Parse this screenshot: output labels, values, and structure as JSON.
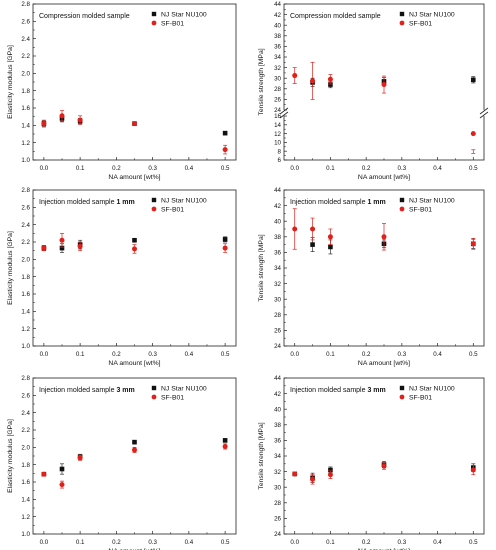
{
  "colors": {
    "nj": "#111111",
    "sf": "#e0201b",
    "axis": "#222222",
    "err_nj": "#333333",
    "err_sf": "#e0201b"
  },
  "chart_data": [
    {
      "type": "scatter",
      "title": "Compression molded sample",
      "title_suffix": "",
      "xlabel": "NA amount [wt%]",
      "ylabel": "Elasticity modulus [GPa]",
      "xlim": [
        -0.03,
        0.53
      ],
      "ylim": [
        1.0,
        2.8
      ],
      "xticks": [
        "0.0",
        "0.1",
        "0.2",
        "0.3",
        "0.4",
        "0.5"
      ],
      "yticks": [
        "1.0",
        "1.2",
        "1.4",
        "1.6",
        "1.8",
        "2.0",
        "2.2",
        "2.4",
        "2.6",
        "2.8"
      ],
      "legend": "top-right",
      "series": [
        {
          "name": "NJ Star NU100",
          "marker": "square",
          "x": [
            0.0,
            0.05,
            0.1,
            0.25,
            0.5
          ],
          "y": [
            1.42,
            1.48,
            1.45,
            1.42,
            1.31
          ],
          "err": [
            0.03,
            0.04,
            0.03,
            0.02,
            0.02
          ]
        },
        {
          "name": "SF-B01",
          "marker": "circle",
          "x": [
            0.0,
            0.05,
            0.1,
            0.25,
            0.5
          ],
          "y": [
            1.42,
            1.51,
            1.46,
            1.42,
            1.12
          ],
          "err": [
            0.04,
            0.06,
            0.05,
            0.02,
            0.05
          ]
        }
      ]
    },
    {
      "type": "scatter",
      "title": "Compression molded sample",
      "title_suffix": "",
      "xlabel": "NA amount [wt%]",
      "ylabel": "Tensile strength [MPa]",
      "xlim": [
        -0.03,
        0.53
      ],
      "broken_axis": true,
      "ylim_lower": [
        6,
        16
      ],
      "ylim_upper": [
        24,
        44
      ],
      "yticks_lower": [
        "6",
        "8",
        "10",
        "12",
        "14",
        "16"
      ],
      "yticks_upper": [
        "24",
        "26",
        "28",
        "30",
        "32",
        "34",
        "36",
        "38",
        "40",
        "42",
        "44"
      ],
      "xticks": [
        "0.0",
        "0.1",
        "0.2",
        "0.3",
        "0.4",
        "0.5"
      ],
      "legend": "top-right",
      "series": [
        {
          "name": "NJ Star NU100",
          "marker": "square",
          "x": [
            0.05,
            0.1,
            0.25,
            0.5
          ],
          "y": [
            29.2,
            28.8,
            29.4,
            29.7
          ],
          "err": [
            0.8,
            0.6,
            0.7,
            0.6
          ]
        },
        {
          "name": "SF-B01",
          "marker": "circle",
          "x": [
            0.0,
            0.05,
            0.1,
            0.25,
            0.5
          ],
          "y": [
            30.5,
            29.5,
            29.8,
            28.8,
            12.0
          ],
          "err": [
            1.5,
            3.5,
            0.9,
            1.6,
            4.5
          ]
        }
      ]
    },
    {
      "type": "scatter",
      "title": "Injection molded sample ",
      "title_suffix": "1 mm",
      "xlabel": "NA amount [wt%]",
      "ylabel": "Elasticity modulus [GPa]",
      "xlim": [
        -0.03,
        0.53
      ],
      "ylim": [
        1.0,
        2.8
      ],
      "xticks": [
        "0.0",
        "0.1",
        "0.2",
        "0.3",
        "0.4",
        "0.5"
      ],
      "yticks": [
        "1.0",
        "1.2",
        "1.4",
        "1.6",
        "1.8",
        "2.0",
        "2.2",
        "2.4",
        "2.6",
        "2.8"
      ],
      "legend": "top-right",
      "series": [
        {
          "name": "NJ Star NU100",
          "marker": "square",
          "x": [
            0.0,
            0.05,
            0.1,
            0.25,
            0.5
          ],
          "y": [
            2.13,
            2.13,
            2.17,
            2.22,
            2.23
          ],
          "err": [
            0.03,
            0.05,
            0.05,
            0.02,
            0.03
          ]
        },
        {
          "name": "SF-B01",
          "marker": "circle",
          "x": [
            0.0,
            0.05,
            0.1,
            0.25,
            0.5
          ],
          "y": [
            2.13,
            2.22,
            2.15,
            2.12,
            2.13
          ],
          "err": [
            0.03,
            0.08,
            0.05,
            0.05,
            0.05
          ]
        }
      ]
    },
    {
      "type": "scatter",
      "title": "Injection molded sample ",
      "title_suffix": "1 mm",
      "xlabel": "NA amount [wt%]",
      "ylabel": "Tensile strength [MPa]",
      "xlim": [
        -0.03,
        0.53
      ],
      "ylim": [
        24,
        44
      ],
      "xticks": [
        "0.0",
        "0.1",
        "0.2",
        "0.3",
        "0.4",
        "0.5"
      ],
      "yticks": [
        "24",
        "26",
        "28",
        "30",
        "32",
        "34",
        "36",
        "38",
        "40",
        "42",
        "44"
      ],
      "legend": "top-right",
      "series": [
        {
          "name": "NJ Star NU100",
          "marker": "square",
          "x": [
            0.05,
            0.1,
            0.25,
            0.5
          ],
          "y": [
            37.0,
            36.7,
            37.1,
            37.1
          ],
          "err": [
            0.9,
            0.9,
            0.5,
            0.6
          ]
        },
        {
          "name": "SF-B01",
          "marker": "circle",
          "x": [
            0.0,
            0.05,
            0.1,
            0.25,
            0.5
          ],
          "y": [
            39.0,
            39.0,
            38.0,
            38.0,
            37.1
          ],
          "err": [
            2.6,
            1.4,
            1.0,
            1.7,
            0.7
          ]
        }
      ]
    },
    {
      "type": "scatter",
      "title": "Injection molded sample ",
      "title_suffix": "3 mm",
      "xlabel": "NA amount [wt%]",
      "ylabel": "Elasticity modulus [GPa]",
      "xlim": [
        -0.03,
        0.53
      ],
      "ylim": [
        1.0,
        2.8
      ],
      "xticks": [
        "0.0",
        "0.1",
        "0.2",
        "0.3",
        "0.4",
        "0.5"
      ],
      "yticks": [
        "1.0",
        "1.2",
        "1.4",
        "1.6",
        "1.8",
        "2.0",
        "2.2",
        "2.4",
        "2.6",
        "2.8"
      ],
      "legend": "top-right",
      "series": [
        {
          "name": "NJ Star NU100",
          "marker": "square",
          "x": [
            0.0,
            0.05,
            0.1,
            0.25,
            0.5
          ],
          "y": [
            1.69,
            1.75,
            1.89,
            2.06,
            2.08
          ],
          "err": [
            0.02,
            0.06,
            0.03,
            0.02,
            0.02
          ]
        },
        {
          "name": "SF-B01",
          "marker": "circle",
          "x": [
            0.0,
            0.05,
            0.1,
            0.25,
            0.5
          ],
          "y": [
            1.69,
            1.57,
            1.88,
            1.97,
            2.01
          ],
          "err": [
            0.02,
            0.04,
            0.03,
            0.03,
            0.03
          ]
        }
      ]
    },
    {
      "type": "scatter",
      "title": "Injection molded sample ",
      "title_suffix": "3 mm",
      "xlabel": "NA amount [wt%]",
      "ylabel": "Tensile strength [MPa]",
      "xlim": [
        -0.03,
        0.53
      ],
      "ylim": [
        24,
        44
      ],
      "xticks": [
        "0.0",
        "0.1",
        "0.2",
        "0.3",
        "0.4",
        "0.5"
      ],
      "yticks": [
        "24",
        "26",
        "28",
        "30",
        "32",
        "34",
        "36",
        "38",
        "40",
        "42",
        "44"
      ],
      "legend": "top-right",
      "series": [
        {
          "name": "NJ Star NU100",
          "marker": "square",
          "x": [
            0.0,
            0.05,
            0.1,
            0.25,
            0.5
          ],
          "y": [
            31.7,
            31.2,
            32.2,
            32.9,
            32.5
          ],
          "err": [
            0.2,
            0.6,
            0.4,
            0.4,
            0.5
          ]
        },
        {
          "name": "SF-B01",
          "marker": "circle",
          "x": [
            0.0,
            0.05,
            0.1,
            0.25,
            0.5
          ],
          "y": [
            31.7,
            31.0,
            31.6,
            32.7,
            32.2
          ],
          "err": [
            0.2,
            0.6,
            0.5,
            0.4,
            0.6
          ]
        }
      ]
    }
  ]
}
